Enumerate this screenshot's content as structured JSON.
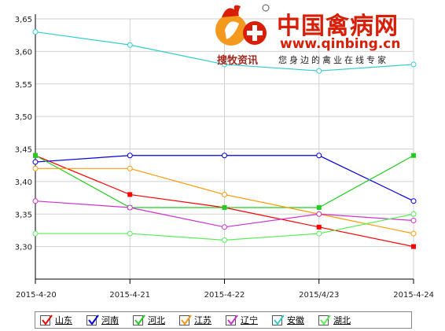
{
  "brand": {
    "site_name": "中国禽病网",
    "url": "www.qinbing.cn",
    "logo_name": "搜牧资讯",
    "slogan": "您身边的禽业在线专家",
    "logo_icon": "rooster-plus-icon",
    "accent": "#d81e06"
  },
  "chart_data": {
    "type": "line",
    "categories": [
      "2015-4-20",
      "2015-4-21",
      "2015-4-22",
      "2015/4/23",
      "2015-4-24"
    ],
    "ylim": [
      3.25,
      3.65
    ],
    "yticks": [
      "3,30",
      "3,35",
      "3,40",
      "3,45",
      "3,50",
      "3,55",
      "3,60",
      "3,65"
    ],
    "grid": true,
    "legend_position": "bottom",
    "series": [
      {
        "name": "山东",
        "color": "#ff0000",
        "marker": "square",
        "values": [
          3.44,
          3.38,
          3.36,
          3.33,
          3.3
        ]
      },
      {
        "name": "河南",
        "color": "#0000dd",
        "marker": "circle",
        "values": [
          3.43,
          3.44,
          3.44,
          3.44,
          3.37
        ]
      },
      {
        "name": "河北",
        "color": "#22cc22",
        "marker": "square",
        "values": [
          3.44,
          3.36,
          3.36,
          3.36,
          3.44
        ]
      },
      {
        "name": "江苏",
        "color": "#ff9900",
        "marker": "circle",
        "values": [
          3.42,
          3.42,
          3.38,
          3.35,
          3.32
        ]
      },
      {
        "name": "辽宁",
        "color": "#cc33cc",
        "marker": "circle",
        "values": [
          3.37,
          3.36,
          3.33,
          3.35,
          3.34
        ]
      },
      {
        "name": "安徽",
        "color": "#33cccc",
        "marker": "circle",
        "values": [
          3.63,
          3.61,
          3.58,
          3.57,
          3.58
        ]
      },
      {
        "name": "湖北",
        "color": "#55ee55",
        "marker": "circle",
        "values": [
          3.32,
          3.32,
          3.31,
          3.32,
          3.35
        ]
      }
    ]
  }
}
